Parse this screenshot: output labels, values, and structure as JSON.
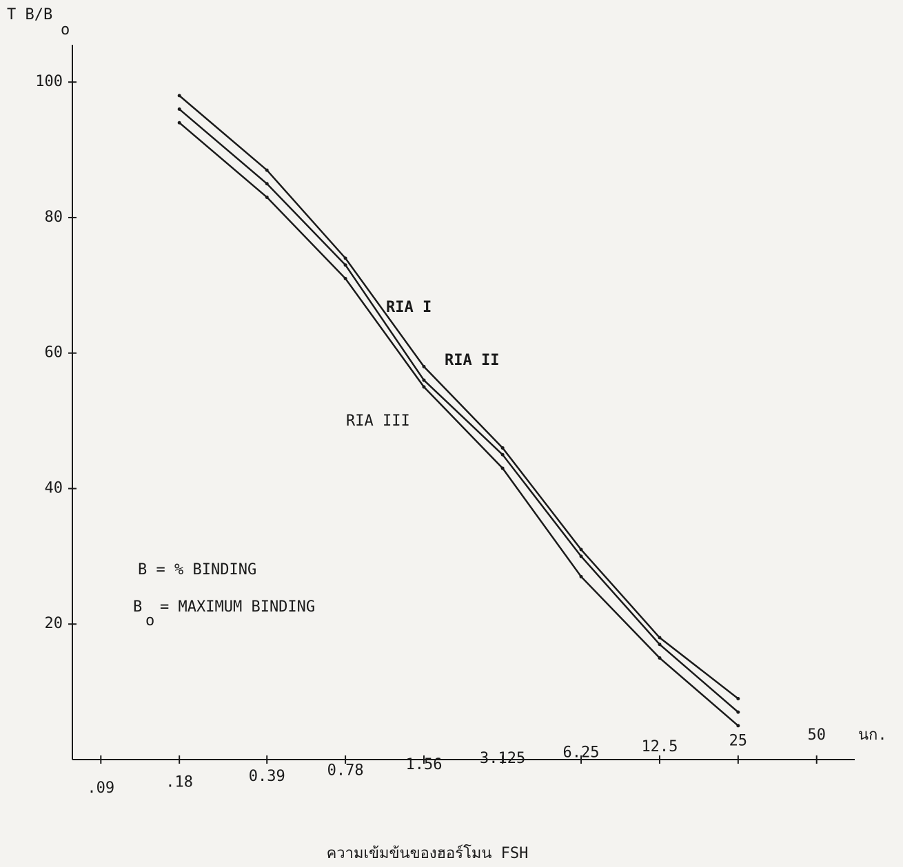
{
  "chart_data": {
    "type": "line",
    "ylabel": "T B/B",
    "ylabel_subscript": "o",
    "xlabel": "ความเข้มข้นของฮอร์โมน  FSH",
    "x_unit": "นก.",
    "notes": [
      "B = % BINDING",
      "B",
      "o",
      "= MAXIMUM  BINDING"
    ],
    "x": [
      0.18,
      0.39,
      0.78,
      1.56,
      3.125,
      6.25,
      12.5,
      25
    ],
    "series": [
      {
        "name": "RIA I",
        "color": "#1a1a1a",
        "values": [
          98,
          87,
          74,
          58,
          46,
          31,
          18,
          9
        ]
      },
      {
        "name": "RIA II",
        "color": "#1a1a1a",
        "values": [
          96,
          85,
          73,
          56,
          45,
          30,
          17,
          7
        ]
      },
      {
        "name": "RIA III",
        "color": "#1a1a1a",
        "values": [
          94,
          83,
          71,
          55,
          43,
          27,
          15,
          5
        ]
      }
    ],
    "xlog": true,
    "xlim": [
      0.07,
      70
    ],
    "xticks": [
      {
        "value": 0.09,
        "label": ".09"
      },
      {
        "value": 0.18,
        "label": ".18"
      },
      0.39,
      0.78,
      1.56,
      3.125,
      6.25,
      12.5,
      25,
      50
    ],
    "ylim": [
      0,
      105
    ],
    "yticks": [
      20,
      40,
      60,
      80,
      100
    ],
    "grid": false
  }
}
